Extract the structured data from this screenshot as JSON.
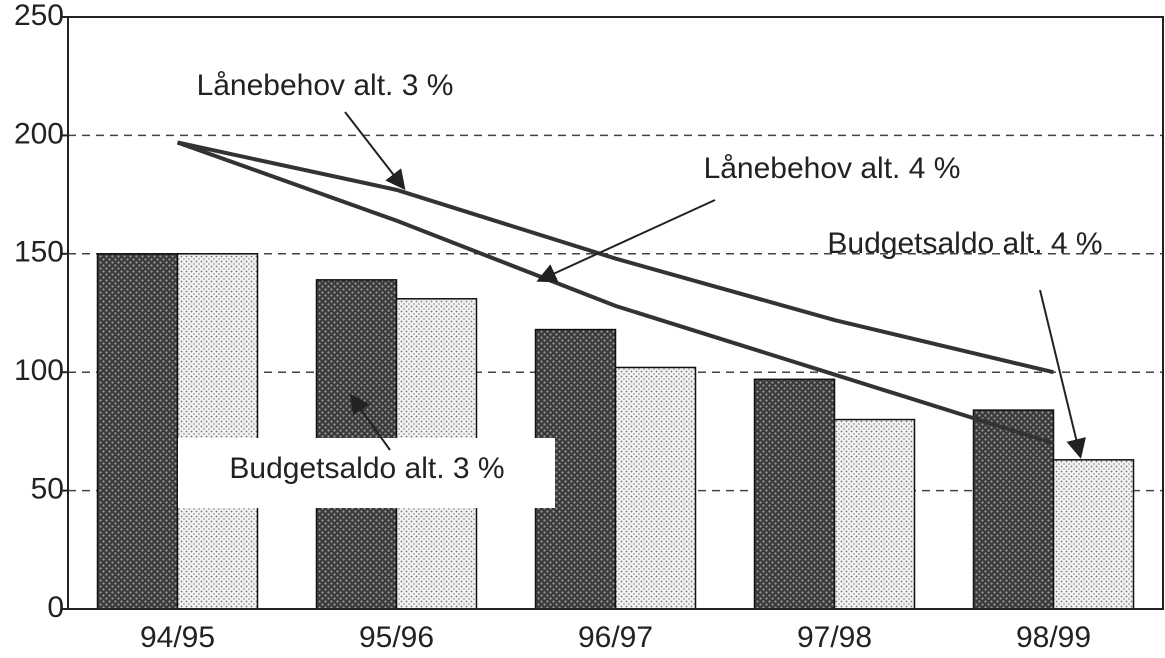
{
  "chart_data": {
    "type": "bar",
    "categories": [
      "94/95",
      "95/96",
      "96/97",
      "97/98",
      "98/99"
    ],
    "series": [
      {
        "name": "Budgetsaldo alt. 3 %",
        "type": "bar",
        "color": "#4a4a4a",
        "values": [
          150,
          139,
          118,
          97,
          84
        ]
      },
      {
        "name": "Budgetsaldo alt. 4 %",
        "type": "bar",
        "color": "#dcdcdc",
        "values": [
          150,
          131,
          102,
          80,
          63
        ]
      },
      {
        "name": "Lånebehov alt. 3 %",
        "type": "line",
        "color": "#333333",
        "values": [
          197,
          177,
          148,
          122,
          100
        ]
      },
      {
        "name": "Lånebehov alt. 4 %",
        "type": "line",
        "color": "#333333",
        "values": [
          197,
          164,
          128,
          99,
          70
        ]
      }
    ],
    "ylim": [
      0,
      250
    ],
    "yticks": [
      0,
      50,
      100,
      150,
      200,
      250
    ],
    "grid": true
  }
}
